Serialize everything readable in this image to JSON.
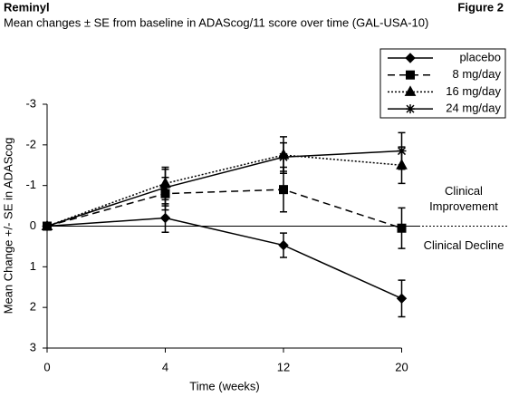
{
  "chart_data": {
    "type": "line",
    "title": "Reminyl",
    "figure_label": "Figure 2",
    "subtitle": "Mean changes ± SE from baseline in ADAScog/11 score over time (GAL-USA-10)",
    "x_label": "Time (weeks)",
    "y_label": "Mean Change +/- SE in ADAScog",
    "categories": [
      "0",
      "4",
      "12",
      "20"
    ],
    "ylim": [
      -3,
      3
    ],
    "y_inverted": true,
    "yticks": [
      -3,
      -2,
      -1,
      0,
      1,
      2,
      3
    ],
    "legend": "top-right",
    "annotations": [
      "Clinical Improvement",
      "Clinical Decline"
    ],
    "series": [
      {
        "name": "placebo",
        "color": "#000000",
        "dash": "solid",
        "marker": "diamond",
        "values": [
          0,
          -0.2,
          0.47,
          1.78
        ],
        "errors": [
          0,
          0.35,
          0.3,
          0.45
        ]
      },
      {
        "name": "8 mg/day",
        "color": "#000000",
        "dash": "dashed",
        "marker": "square",
        "values": [
          0,
          -0.8,
          -0.9,
          0.05
        ],
        "errors": [
          0,
          0.4,
          0.55,
          0.5
        ]
      },
      {
        "name": "16 mg/day",
        "color": "#000000",
        "dash": "dotted",
        "marker": "triangle",
        "values": [
          0,
          -1.05,
          -1.75,
          -1.5
        ],
        "errors": [
          0,
          0.4,
          0.45,
          0.45
        ]
      },
      {
        "name": "24 mg/day",
        "color": "#000000",
        "dash": "solid",
        "marker": "asterisk",
        "values": [
          0,
          -0.95,
          -1.7,
          -1.85
        ],
        "errors": [
          0,
          0.45,
          0.35,
          0.45
        ]
      }
    ]
  }
}
